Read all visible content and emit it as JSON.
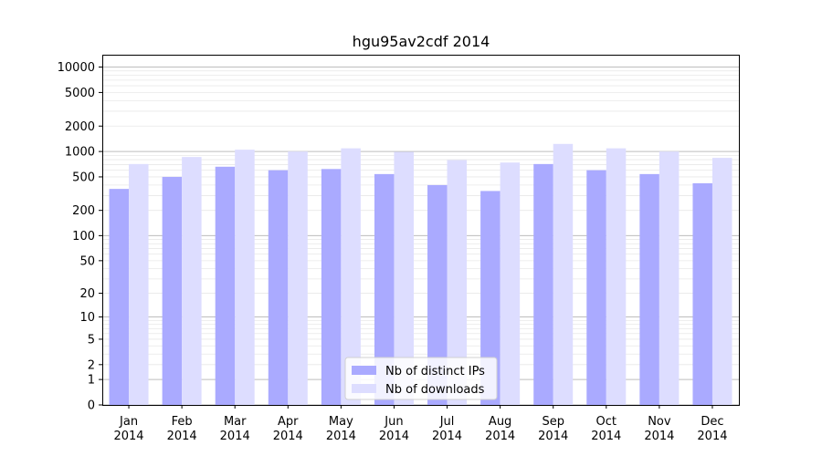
{
  "chart_data": {
    "type": "bar",
    "title": "hgu95av2cdf 2014",
    "xlabel": "",
    "ylabel": "",
    "y_scale": "symlog",
    "ylim": [
      0,
      14000
    ],
    "y_ticks": [
      0,
      1,
      2,
      5,
      10,
      20,
      50,
      100,
      200,
      500,
      1000,
      2000,
      5000,
      10000
    ],
    "categories": [
      "Jan\n2014",
      "Feb\n2014",
      "Mar\n2014",
      "Apr\n2014",
      "May\n2014",
      "Jun\n2014",
      "Jul\n2014",
      "Aug\n2014",
      "Sep\n2014",
      "Oct\n2014",
      "Nov\n2014",
      "Dec\n2014"
    ],
    "series": [
      {
        "name": "Nb of distinct IPs",
        "color": "#aaaaff",
        "values": [
          360,
          500,
          660,
          600,
          620,
          540,
          400,
          340,
          710,
          600,
          540,
          420
        ]
      },
      {
        "name": "Nb of downloads",
        "color": "#ddddff",
        "values": [
          710,
          860,
          1050,
          1000,
          1090,
          990,
          790,
          740,
          1230,
          1090,
          1000,
          840
        ]
      }
    ],
    "grid": true,
    "legend_position": "lower center"
  }
}
